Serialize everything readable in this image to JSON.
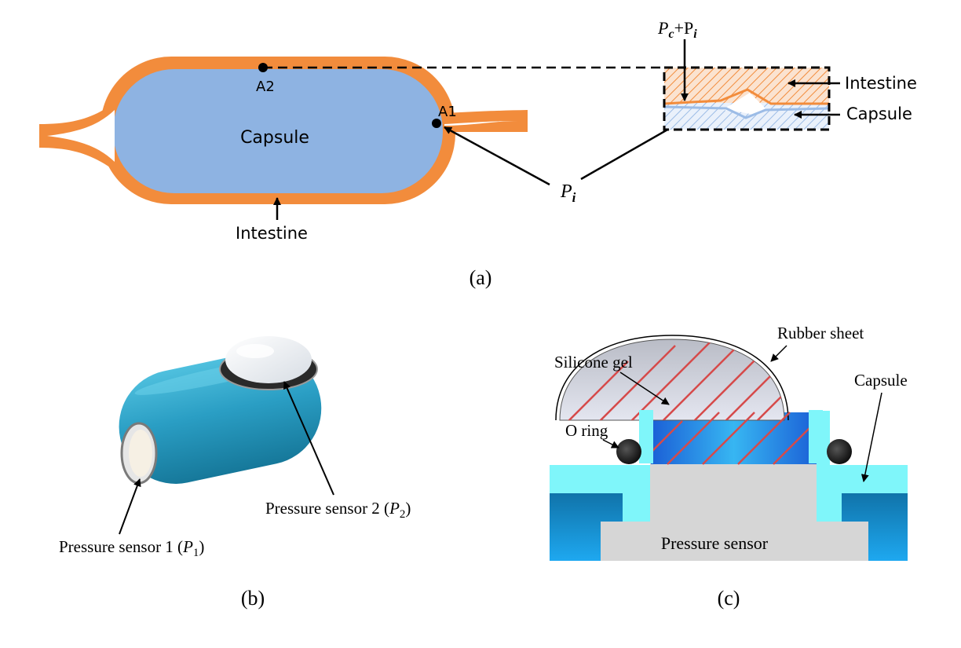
{
  "panel_a": {
    "capsule_label": "Capsule",
    "intestine_label": "Intestine",
    "point_a1": "A1",
    "point_a2": "A2",
    "pi_main": "P",
    "pi_sub": "i",
    "inset": {
      "top_p1": "P",
      "top_sub1": "c",
      "top_plus": "+P",
      "top_sub2": "i",
      "intestine_label": "Intestine",
      "capsule_label": "Capsule"
    },
    "caption": "(a)"
  },
  "panel_b": {
    "sensor1_text": "Pressure sensor 1 (",
    "sensor1_var": "P",
    "sensor1_sub": "1",
    "sensor1_close": ")",
    "sensor2_text": "Pressure sensor 2 (",
    "sensor2_var": "P",
    "sensor2_sub": "2",
    "sensor2_close": ")",
    "caption": "(b)"
  },
  "panel_c": {
    "rubber_sheet": "Rubber sheet",
    "silicone_gel": "Silicone gel",
    "capsule": "Capsule",
    "o_ring": "O ring",
    "pressure_sensor": "Pressure sensor",
    "caption": "(c)"
  },
  "colors": {
    "intestine": "#F28C3C",
    "capsule": "#8EB3E2",
    "capsule_3d": "#2A9EC4",
    "cyan_wall": "#7FF6FA",
    "sensor_gray": "#D6D6D6",
    "hatch_red": "#D64A4A"
  }
}
